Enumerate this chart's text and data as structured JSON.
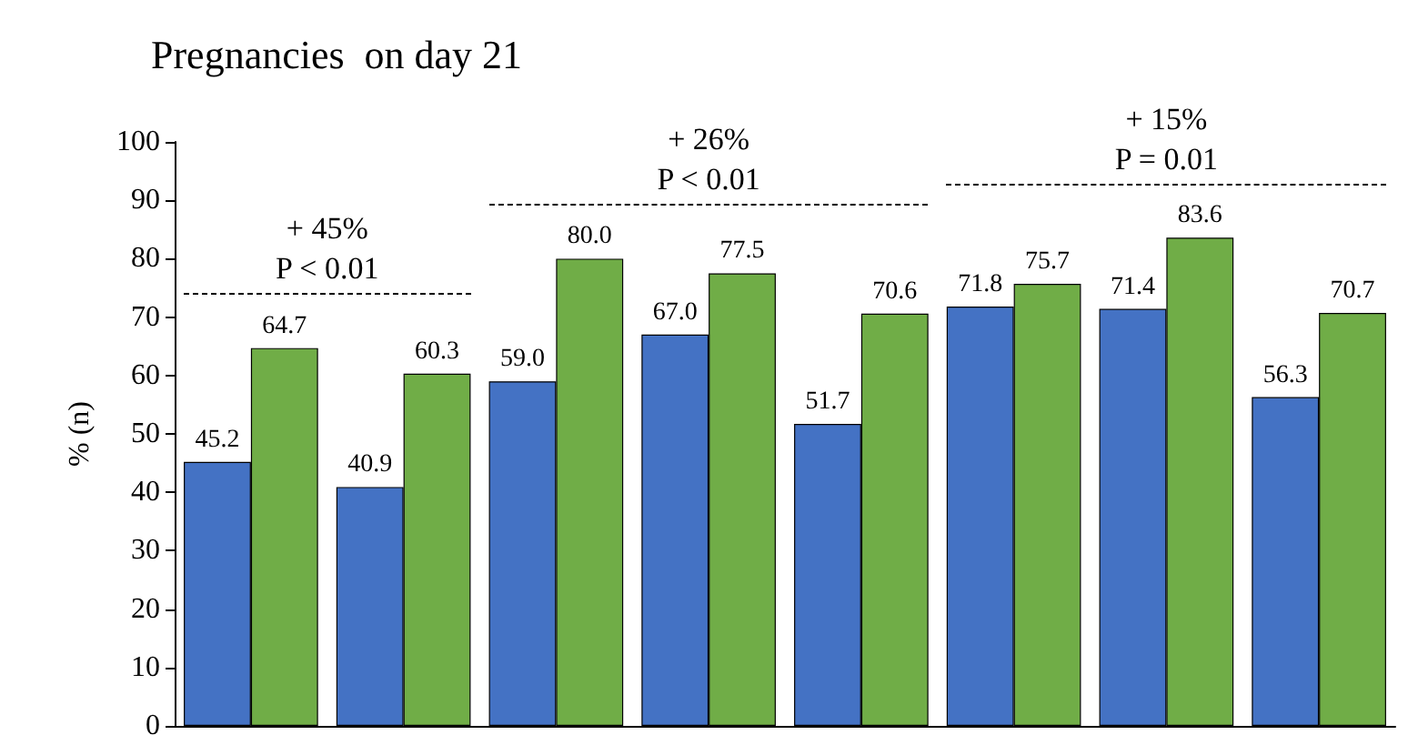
{
  "chart_data": {
    "type": "bar",
    "title": "Pregnancies  on day 21",
    "ylabel": "% (n)",
    "categories": [
      null,
      null,
      null,
      null,
      null,
      null,
      null,
      null
    ],
    "series": [
      {
        "color": "#4472c4",
        "values": [
          45.2,
          40.9,
          59.0,
          67.0,
          51.7,
          71.8,
          71.4,
          56.3
        ],
        "value_labels": [
          "45.2",
          "40.9",
          "59.0",
          "67.0",
          "51.7",
          "71.8",
          "71.4",
          "56.3"
        ]
      },
      {
        "color": "#70ad47",
        "values": [
          64.7,
          60.3,
          80.0,
          77.5,
          70.6,
          75.7,
          83.6,
          70.7
        ],
        "value_labels": [
          "64.7",
          "60.3",
          "80.0",
          "77.5",
          "70.6",
          "75.7",
          "83.6",
          "70.7"
        ]
      }
    ],
    "annotations": [
      "+ 45%\nP < 0.01",
      "+ 26%\nP < 0.01",
      "+ 15%\nP = 0.01"
    ],
    "ylim": [
      0,
      100
    ],
    "yticks": [
      0,
      10,
      20,
      30,
      40,
      50,
      60,
      70,
      80,
      90,
      100
    ],
    "grid": false
  }
}
